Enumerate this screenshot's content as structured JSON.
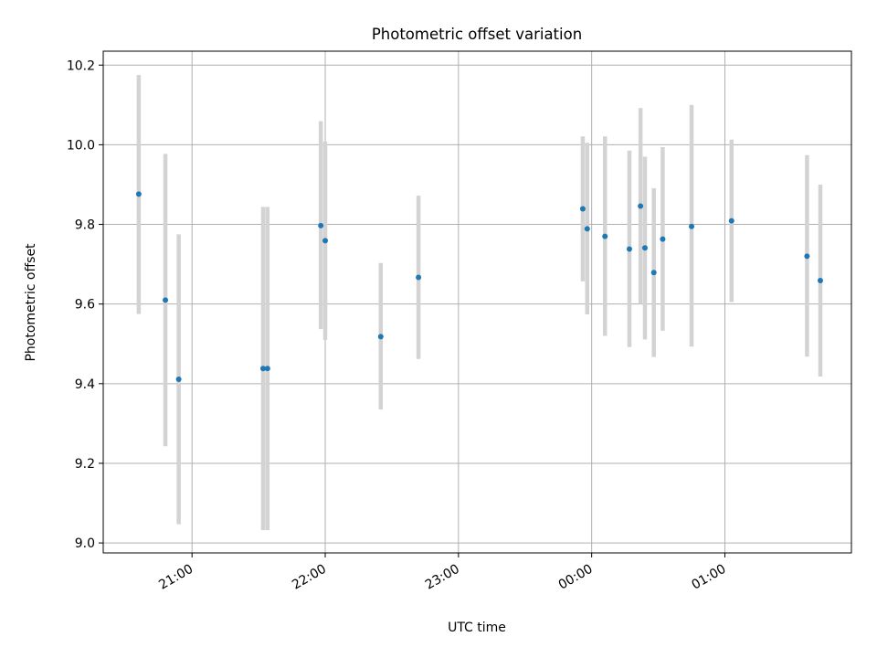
{
  "chart_data": {
    "type": "scatter",
    "title": "Photometric offset variation",
    "xlabel": "UTC time",
    "ylabel": "Photometric offset",
    "x_axis": {
      "unit": "time",
      "range": [
        "20:20",
        "01:57"
      ],
      "ticks": [
        {
          "time": "21:00",
          "label": "21:00"
        },
        {
          "time": "22:00",
          "label": "22:00"
        },
        {
          "time": "23:00",
          "label": "23:00"
        },
        {
          "time": "00:00",
          "label": "00:00"
        },
        {
          "time": "01:00",
          "label": "01:00"
        }
      ]
    },
    "y_axis": {
      "range": [
        8.975,
        10.235
      ],
      "ticks": [
        {
          "value": 9.0,
          "label": "9.0"
        },
        {
          "value": 9.2,
          "label": "9.2"
        },
        {
          "value": 9.4,
          "label": "9.4"
        },
        {
          "value": 9.6,
          "label": "9.6"
        },
        {
          "value": 9.8,
          "label": "9.8"
        },
        {
          "value": 10.0,
          "label": "10.0"
        },
        {
          "value": 10.2,
          "label": "10.2"
        }
      ]
    },
    "grid": true,
    "legend": false,
    "colors": {
      "point": "#1f77b4",
      "errorbar": "#d3d3d3",
      "grid": "#b0b0b0"
    },
    "points": [
      {
        "time": "20:36",
        "y": 9.876,
        "low": 9.575,
        "high": 10.175
      },
      {
        "time": "20:48",
        "y": 9.61,
        "low": 9.243,
        "high": 9.977
      },
      {
        "time": "20:54",
        "y": 9.411,
        "low": 9.047,
        "high": 9.775
      },
      {
        "time": "21:32",
        "y": 9.438,
        "low": 9.032,
        "high": 9.844
      },
      {
        "time": "21:34",
        "y": 9.438,
        "low": 9.032,
        "high": 9.844
      },
      {
        "time": "21:58",
        "y": 9.797,
        "low": 9.537,
        "high": 10.059
      },
      {
        "time": "22:00",
        "y": 9.759,
        "low": 9.51,
        "high": 10.008
      },
      {
        "time": "22:25",
        "y": 9.518,
        "low": 9.335,
        "high": 9.703
      },
      {
        "time": "22:42",
        "y": 9.667,
        "low": 9.462,
        "high": 9.872
      },
      {
        "time": "23:56",
        "y": 9.839,
        "low": 9.657,
        "high": 10.021
      },
      {
        "time": "23:58",
        "y": 9.789,
        "low": 9.574,
        "high": 10.005
      },
      {
        "time": "00:06",
        "y": 9.77,
        "low": 9.52,
        "high": 10.021
      },
      {
        "time": "00:17",
        "y": 9.738,
        "low": 9.492,
        "high": 9.985
      },
      {
        "time": "00:22",
        "y": 9.846,
        "low": 9.6,
        "high": 10.092
      },
      {
        "time": "00:24",
        "y": 9.741,
        "low": 9.511,
        "high": 9.97
      },
      {
        "time": "00:28",
        "y": 9.679,
        "low": 9.467,
        "high": 9.891
      },
      {
        "time": "00:32",
        "y": 9.763,
        "low": 9.533,
        "high": 9.994
      },
      {
        "time": "00:45",
        "y": 9.795,
        "low": 9.493,
        "high": 10.1
      },
      {
        "time": "01:03",
        "y": 9.809,
        "low": 9.605,
        "high": 10.013
      },
      {
        "time": "01:37",
        "y": 9.72,
        "low": 9.468,
        "high": 9.974
      },
      {
        "time": "01:43",
        "y": 9.659,
        "low": 9.418,
        "high": 9.9
      }
    ]
  }
}
